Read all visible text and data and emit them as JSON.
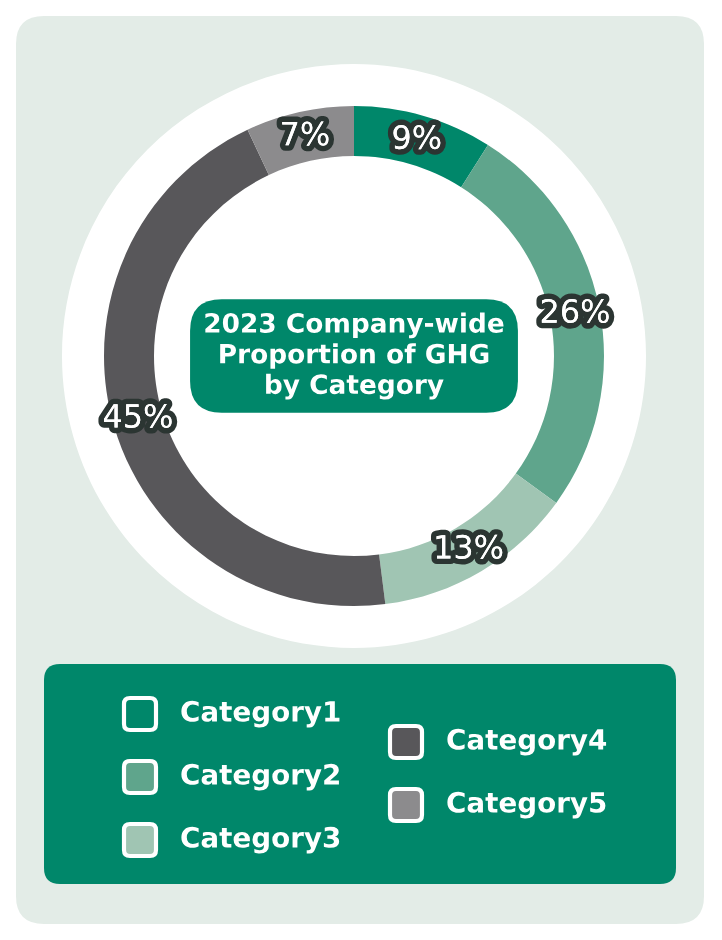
{
  "chart_data": {
    "type": "donut",
    "title": "2023 Company-wide\nProportion of GHG\nby Category",
    "categories": [
      "Category1",
      "Category2",
      "Category3",
      "Category4",
      "Category5"
    ],
    "values": [
      9,
      26,
      13,
      45,
      7
    ],
    "value_labels": [
      "9%",
      "26%",
      "13%",
      "45%",
      "7%"
    ],
    "colors": [
      "#00876a",
      "#5fa58c",
      "#a0c5b3",
      "#58575a",
      "#8c8b8d"
    ],
    "legend": "bottom"
  }
}
